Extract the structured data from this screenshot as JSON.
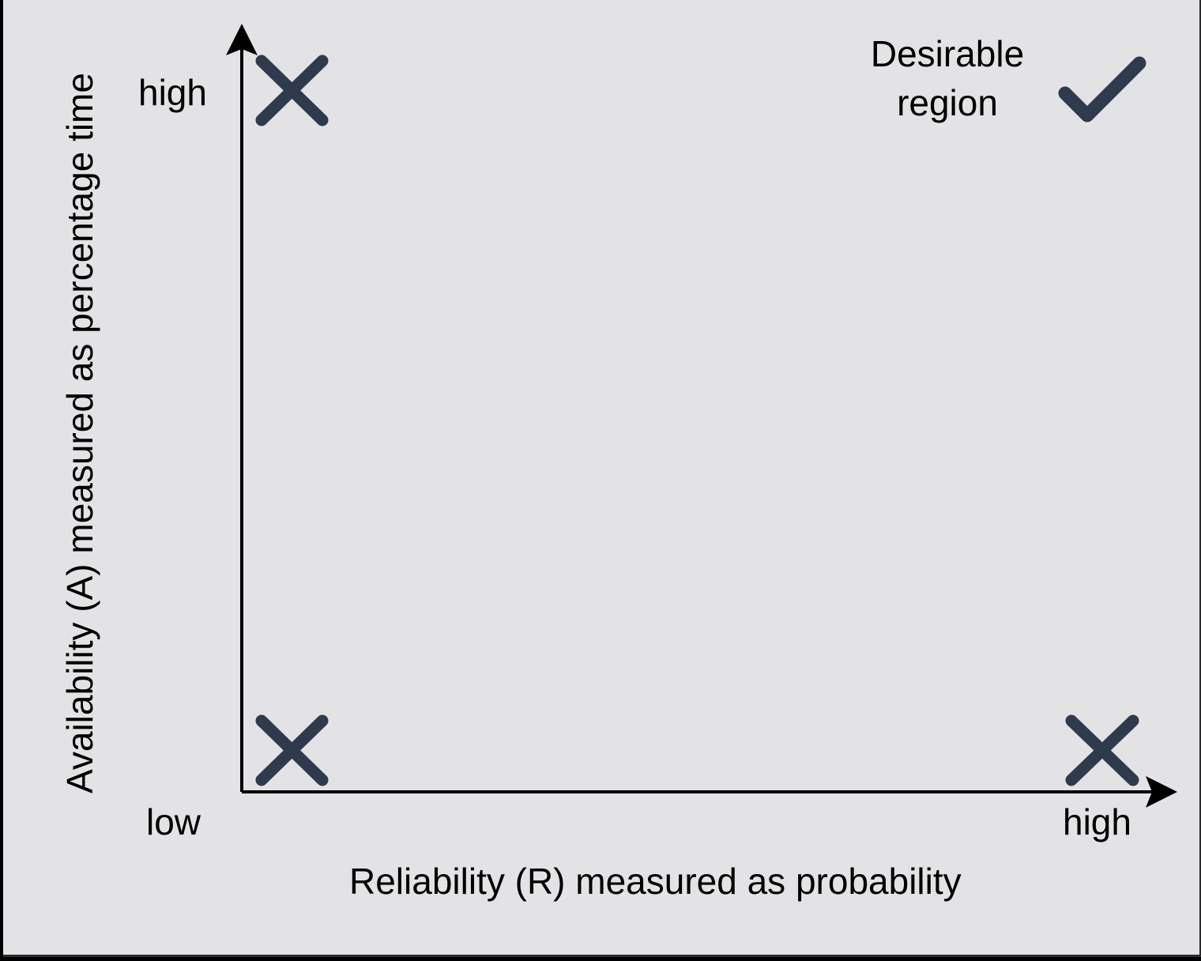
{
  "axes": {
    "y_title": "Availability (A) measured as percentage time",
    "y_high": "high",
    "x_title": "Reliability (R) measured as probability",
    "x_low": "low",
    "x_high": "high"
  },
  "desirable_region": {
    "label": "Desirable region"
  },
  "markers": [
    {
      "quadrant": "low-reliability-high-availability",
      "icon": "cross-icon"
    },
    {
      "quadrant": "low-reliability-low-availability",
      "icon": "cross-icon"
    },
    {
      "quadrant": "high-reliability-low-availability",
      "icon": "cross-icon"
    },
    {
      "quadrant": "high-reliability-high-availability",
      "icon": "checkmark-icon"
    }
  ],
  "colors": {
    "background": "#e3e3e5",
    "marker": "#2f3b4c",
    "axis": "#000000"
  }
}
